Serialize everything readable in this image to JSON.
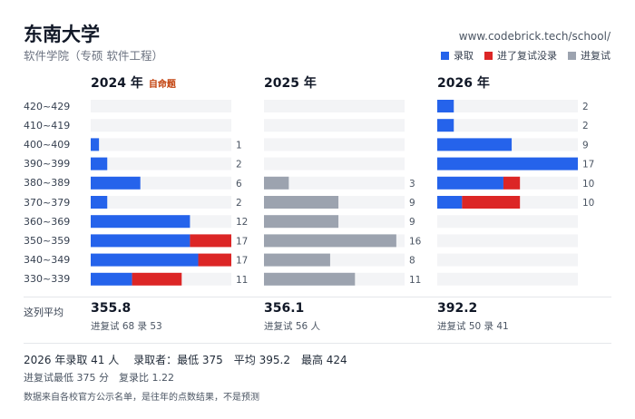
{
  "header": {
    "title": "东南大学",
    "subtitle": "软件学院（专硕 软件工程）",
    "url": "www.codebrick.tech/school/"
  },
  "legend": [
    {
      "label": "录取",
      "color": "#2563eb"
    },
    {
      "label": "进了复试没录",
      "color": "#dc2626"
    },
    {
      "label": "进复试",
      "color": "#9ca3af"
    }
  ],
  "self_tag": "自命题",
  "avg_row_label": "这列平均",
  "chart_data": {
    "type": "bar",
    "orientation": "horizontal",
    "stacked": true,
    "categories": [
      "420~429",
      "410~419",
      "400~409",
      "390~399",
      "380~389",
      "370~379",
      "360~369",
      "350~359",
      "340~349",
      "330~339"
    ],
    "max": 17,
    "panels": [
      {
        "year": "2024 年",
        "self_tag": true,
        "admitted": [
          0,
          0,
          1,
          2,
          6,
          2,
          12,
          12,
          13,
          5
        ],
        "not_admitted": [
          0,
          0,
          0,
          0,
          0,
          0,
          0,
          5,
          4,
          6
        ],
        "interview_only": [
          0,
          0,
          0,
          0,
          0,
          0,
          0,
          0,
          0,
          0
        ],
        "totals": [
          null,
          null,
          1,
          2,
          6,
          2,
          12,
          17,
          17,
          11
        ],
        "avg": "355.8",
        "avg_sub": "进复试 68 录 53"
      },
      {
        "year": "2025 年",
        "self_tag": false,
        "admitted": [
          0,
          0,
          0,
          0,
          0,
          0,
          0,
          0,
          0,
          0
        ],
        "not_admitted": [
          0,
          0,
          0,
          0,
          0,
          0,
          0,
          0,
          0,
          0
        ],
        "interview_only": [
          0,
          0,
          0,
          0,
          3,
          9,
          9,
          16,
          8,
          11
        ],
        "totals": [
          null,
          null,
          null,
          null,
          3,
          9,
          9,
          16,
          8,
          11
        ],
        "avg": "356.1",
        "avg_sub": "进复试 56 人"
      },
      {
        "year": "2026 年",
        "self_tag": false,
        "admitted": [
          2,
          2,
          9,
          17,
          8,
          3,
          0,
          0,
          0,
          0
        ],
        "not_admitted": [
          0,
          0,
          0,
          0,
          2,
          7,
          0,
          0,
          0,
          0
        ],
        "interview_only": [
          0,
          0,
          0,
          0,
          0,
          0,
          0,
          0,
          0,
          0
        ],
        "totals": [
          2,
          2,
          9,
          17,
          10,
          10,
          null,
          null,
          null,
          null
        ],
        "avg": "392.2",
        "avg_sub": "进复试 50 录 41"
      }
    ]
  },
  "summary": {
    "line1": "2026 年录取 41 人　 录取者：最低 375　平均 395.2　最高 424",
    "line2": "进复试最低 375 分　复录比 1.22",
    "note": "数据来自各校官方公示名单，是往年的点数结果，不是预测"
  }
}
